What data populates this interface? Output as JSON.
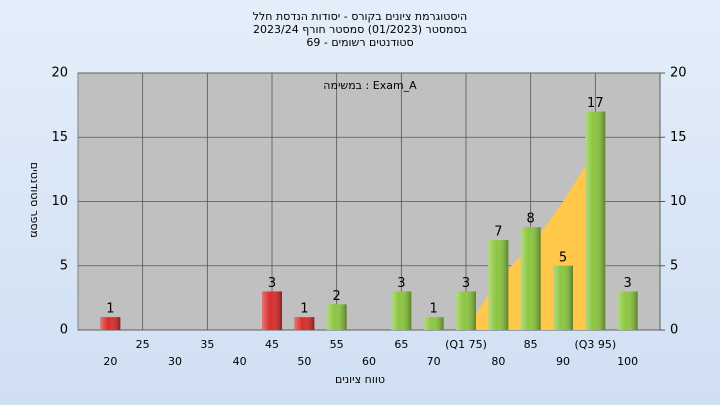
{
  "chart_data": {
    "type": "bar",
    "title": "היסטוגרמת ציונים בקורס - יסודות הנדסת חלל",
    "subtitle": [
      "בסמסטר  (01/2023)  סמסטר חורף 2023/24",
      "סטודנטים רשומים - 69"
    ],
    "annotation": "Exam_A : במשימה",
    "x_label": "טווח ציונים",
    "y_label": "מספר סטודנטים",
    "categories": [
      "20",
      "25",
      "30",
      "35",
      "40",
      "45",
      "50",
      "55",
      "60",
      "65",
      "70",
      "(Q1 75)",
      "80",
      "85",
      "90",
      "(Q3 95)",
      "100"
    ],
    "values": [
      1,
      0,
      0,
      0,
      0,
      3,
      1,
      2,
      0,
      3,
      1,
      3,
      7,
      8,
      5,
      17,
      3
    ],
    "colors": [
      "#d92b2b",
      "#d92b2b",
      "#d92b2b",
      "#d92b2b",
      "#d92b2b",
      "#d92b2b",
      "#d92b2b",
      "#8cc63f",
      "#8cc63f",
      "#8cc63f",
      "#8cc63f",
      "#8cc63f",
      "#8cc63f",
      "#8cc63f",
      "#8cc63f",
      "#8cc63f",
      "#8cc63f"
    ],
    "area_values": [
      null,
      null,
      null,
      null,
      null,
      null,
      null,
      null,
      null,
      null,
      null,
      0,
      4,
      6.5,
      10,
      14,
      null
    ],
    "area_color": "#ffc84a",
    "ylim": [
      0,
      20
    ],
    "yticks": [
      0,
      5,
      10,
      15,
      20
    ],
    "y2lim": [
      0,
      20
    ],
    "y2ticks": [
      0,
      5,
      10,
      15,
      20
    ],
    "grid": true
  }
}
